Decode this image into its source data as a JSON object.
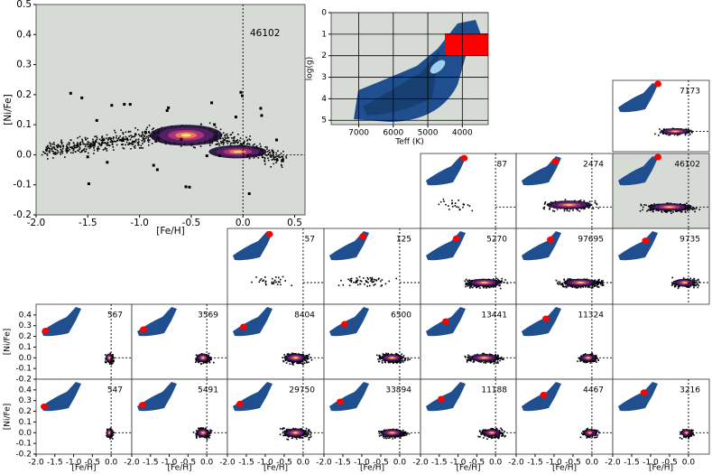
{
  "chart_data": [
    {
      "type": "hist2d",
      "xlabel": "[Fe/H]",
      "ylabel": "[Ni/Fe]",
      "annotation": 46102,
      "xlim": [
        -2.0,
        0.6
      ],
      "ylim": [
        -0.2,
        0.5
      ],
      "xticks": [
        {
          "value": -2,
          "label": "-2.0"
        },
        -1.5,
        {
          "value": -1,
          "label": "-1.0"
        },
        -0.5,
        {
          "value": 0,
          "label": "0.0"
        },
        0.5
      ],
      "yticks": [
        -0.2,
        -0.1,
        {
          "value": 0,
          "label": "0.0"
        },
        0.1,
        0.2,
        0.3,
        0.4,
        0.5
      ],
      "vline": 0,
      "hline": 0
    },
    {
      "type": "hr-inset",
      "xlabel": "Teff (K)",
      "ylabel": "log(g)",
      "xlim": [
        7800,
        3250
      ],
      "ylim": [
        5.2,
        0
      ],
      "xticks": [
        7000,
        6000,
        5000,
        4000
      ],
      "yticks": [
        0,
        1,
        2,
        3,
        4,
        5
      ],
      "grid": true
    },
    {
      "type": "hist2d-grid",
      "xlabel": "[Fe/H]",
      "ylabel": "[Ni/Fe]",
      "xlim": [
        -2.0,
        0.55
      ],
      "ylim": [
        -0.2,
        0.5
      ],
      "xticks": [
        {
          "value": -2,
          "label": "-2.0"
        },
        -1.5,
        {
          "value": -1,
          "label": "-1.0"
        },
        -0.5,
        {
          "value": 0,
          "label": "0.0"
        }
      ],
      "yticks": [
        -0.2,
        -0.1,
        {
          "value": 0,
          "label": "0.0"
        },
        0.1,
        0.2,
        0.3,
        0.4
      ],
      "vline": 0,
      "hline": 0,
      "panels": [
        7173,
        87,
        2474,
        46102,
        57,
        125,
        5270,
        97695,
        9735,
        567,
        3569,
        8404,
        6500,
        13441,
        11324,
        547,
        5491,
        29750,
        33894,
        11188,
        4467,
        3216
      ]
    }
  ]
}
